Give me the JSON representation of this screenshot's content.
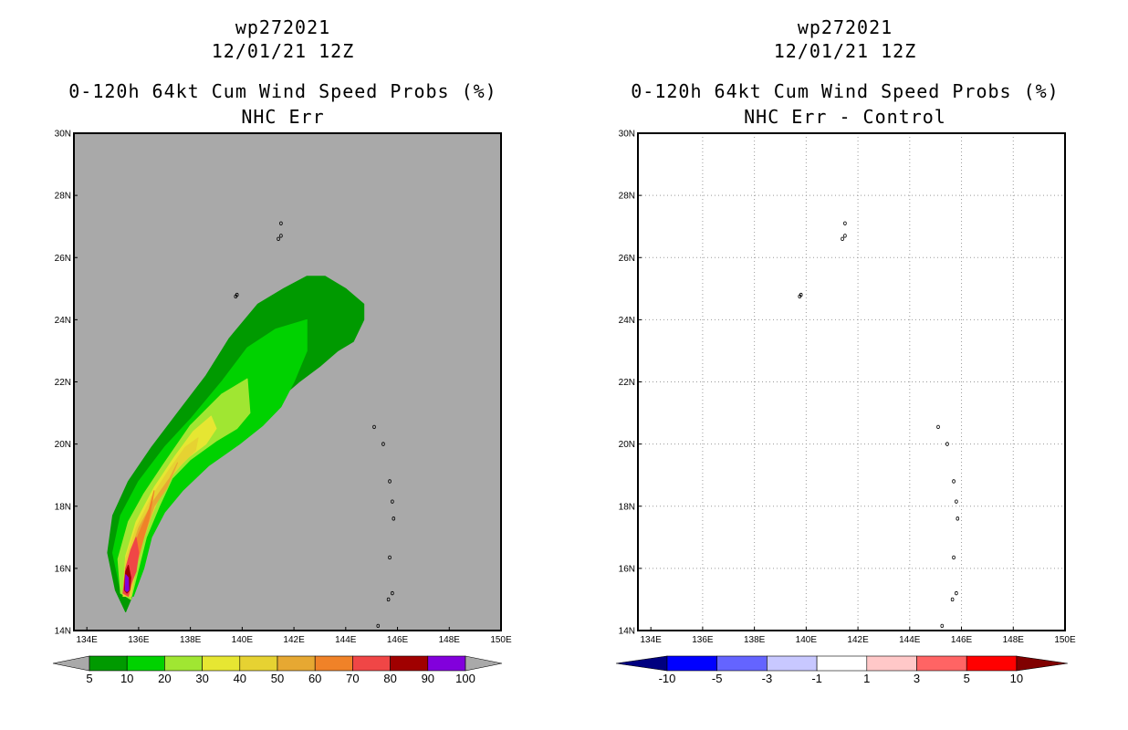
{
  "colors": {
    "background_gray": "#a9a9a9",
    "grid_gray": "#9a9a9a",
    "prob_scale": [
      "#009a00",
      "#00d200",
      "#a0e632",
      "#e6e632",
      "#e6d232",
      "#e6a832",
      "#f08228",
      "#f04646",
      "#a00000",
      "#8200dc"
    ],
    "diff_scale": [
      "#000080",
      "#0000ff",
      "#6464ff",
      "#c8c8ff",
      "#ffffff",
      "#ffc8c8",
      "#ff6464",
      "#ff0000",
      "#800000"
    ]
  },
  "panels": [
    {
      "storm_id": "wp272021",
      "datetime": "12/01/21 12Z",
      "product": "0-120h 64kt Cum Wind Speed Probs (%)",
      "subtitle": "NHC Err",
      "colorbar_labels": [
        "5",
        "10",
        "20",
        "30",
        "40",
        "50",
        "60",
        "70",
        "80",
        "90",
        "100"
      ]
    },
    {
      "storm_id": "wp272021",
      "datetime": "12/01/21 12Z",
      "product": "0-120h 64kt Cum Wind Speed Probs (%)",
      "subtitle": "NHC Err - Control",
      "colorbar_labels": [
        "-10",
        "-5",
        "-3",
        "-1",
        "1",
        "3",
        "5",
        "10"
      ]
    }
  ],
  "chart_data": [
    {
      "type": "heatmap",
      "title": "0-120h 64kt Cum Wind Speed Probs (%)",
      "subtitle": "NHC Err",
      "xlim": [
        133.5,
        150
      ],
      "ylim": [
        14,
        30
      ],
      "x_ticks": [
        "134E",
        "136E",
        "138E",
        "140E",
        "142E",
        "144E",
        "146E",
        "148E",
        "150E"
      ],
      "y_ticks": [
        "14N",
        "16N",
        "18N",
        "20N",
        "22N",
        "24N",
        "26N",
        "28N",
        "30N"
      ],
      "grid": false,
      "levels": [
        5,
        10,
        20,
        30,
        40,
        50,
        60,
        70,
        80,
        90,
        100
      ],
      "max_probability_location": {
        "lon": 135.5,
        "lat": 15.4
      },
      "contours": [
        {
          "level": 5,
          "lon": [
            135.1,
            134.8,
            135.0,
            135.6,
            136.5,
            137.5,
            138.6,
            139.5,
            140.6,
            141.6,
            142.5,
            143.2,
            144.0,
            144.7,
            144.7,
            144.3,
            143.7,
            143.0,
            142.2,
            141.5,
            140.8,
            139.9,
            138.5,
            137.3,
            136.6,
            136.2,
            135.9,
            135.5
          ],
          "lat": [
            15.3,
            16.5,
            17.7,
            18.8,
            19.9,
            21.0,
            22.2,
            23.4,
            24.5,
            25.0,
            25.4,
            25.4,
            25.0,
            24.5,
            24.0,
            23.3,
            23.0,
            22.5,
            22.0,
            21.5,
            21.0,
            20.2,
            19.6,
            18.4,
            17.5,
            16.5,
            15.4,
            14.6
          ]
        },
        {
          "level": 10,
          "lon": [
            135.3,
            135.0,
            135.3,
            136.0,
            137.0,
            138.0,
            139.2,
            140.2,
            141.3,
            142.5,
            142.5,
            142.0,
            141.5,
            140.8,
            139.9,
            138.7,
            137.7,
            137.0,
            136.5,
            136.2,
            135.8
          ],
          "lat": [
            15.3,
            16.5,
            17.7,
            18.8,
            19.9,
            20.8,
            22.0,
            23.1,
            23.7,
            24.0,
            23.0,
            22.0,
            21.2,
            20.6,
            20.0,
            19.3,
            18.5,
            17.8,
            17.0,
            16.0,
            15.1
          ]
        },
        {
          "level": 20,
          "lon": [
            135.3,
            135.2,
            135.6,
            136.2,
            137.0,
            138.0,
            139.2,
            140.2,
            140.3,
            139.8,
            139.0,
            138.0,
            137.3,
            136.8,
            136.3,
            136.0,
            135.7
          ],
          "lat": [
            15.2,
            16.3,
            17.5,
            18.4,
            19.4,
            20.6,
            21.6,
            22.1,
            21.0,
            20.5,
            20.1,
            19.5,
            18.9,
            18.0,
            17.0,
            16.0,
            15.0
          ]
        },
        {
          "level": 30,
          "lon": [
            135.4,
            135.5,
            135.9,
            136.6,
            137.4,
            138.1,
            138.8,
            139.0,
            138.6,
            137.8,
            137.2,
            136.5,
            136.0,
            135.7
          ],
          "lat": [
            15.1,
            16.4,
            17.5,
            18.6,
            19.6,
            20.4,
            20.9,
            20.5,
            20.0,
            19.5,
            18.9,
            17.8,
            16.6,
            15.1
          ]
        },
        {
          "level": 40,
          "lon": [
            135.4,
            135.5,
            135.9,
            136.5,
            137.2,
            137.8,
            138.3,
            138.2,
            137.6,
            137.0,
            136.5,
            136.0,
            135.7
          ],
          "lat": [
            15.1,
            16.3,
            17.3,
            18.3,
            19.2,
            19.9,
            20.2,
            19.8,
            19.3,
            18.7,
            17.7,
            16.5,
            15.1
          ]
        },
        {
          "level": 50,
          "lon": [
            135.4,
            135.6,
            136.0,
            136.6,
            137.2,
            137.5,
            137.1,
            136.6,
            136.2,
            135.9,
            135.6
          ],
          "lat": [
            15.2,
            16.3,
            17.3,
            18.2,
            18.9,
            19.4,
            18.6,
            18.0,
            17.0,
            16.0,
            15.1
          ]
        },
        {
          "level": 60,
          "lon": [
            135.4,
            135.6,
            136.0,
            136.4,
            136.6,
            136.4,
            136.1,
            135.8,
            135.6
          ],
          "lat": [
            15.2,
            16.2,
            17.1,
            17.9,
            18.5,
            17.6,
            16.7,
            15.8,
            15.1
          ]
        },
        {
          "level": 70,
          "lon": [
            135.4,
            135.5,
            135.7,
            135.9,
            136.0,
            135.9,
            135.7,
            135.6
          ],
          "lat": [
            15.2,
            16.0,
            16.6,
            17.0,
            16.5,
            15.9,
            15.5,
            15.1
          ]
        },
        {
          "level": 80,
          "lon": [
            135.45,
            135.5,
            135.6,
            135.7,
            135.65,
            135.55
          ],
          "lat": [
            15.3,
            15.9,
            16.1,
            15.7,
            15.3,
            15.2
          ]
        },
        {
          "level": 90,
          "lon": [
            135.48,
            135.5,
            135.6,
            135.62,
            135.55
          ],
          "lat": [
            15.3,
            15.8,
            15.7,
            15.3,
            15.25
          ]
        },
        {
          "level": 100,
          "lon": [
            135.5,
            135.52,
            135.58,
            135.57
          ],
          "lat": [
            15.35,
            15.7,
            15.6,
            15.35
          ]
        }
      ]
    },
    {
      "type": "heatmap",
      "title": "0-120h 64kt Cum Wind Speed Probs (%)",
      "subtitle": "NHC Err - Control",
      "xlim": [
        133.5,
        150
      ],
      "ylim": [
        14,
        30
      ],
      "x_ticks": [
        "134E",
        "136E",
        "138E",
        "140E",
        "142E",
        "144E",
        "146E",
        "148E",
        "150E"
      ],
      "y_ticks": [
        "14N",
        "16N",
        "18N",
        "20N",
        "22N",
        "24N",
        "26N",
        "28N",
        "30N"
      ],
      "grid": true,
      "levels": [
        -10,
        -5,
        -3,
        -1,
        1,
        3,
        5,
        10
      ],
      "contours": []
    }
  ]
}
